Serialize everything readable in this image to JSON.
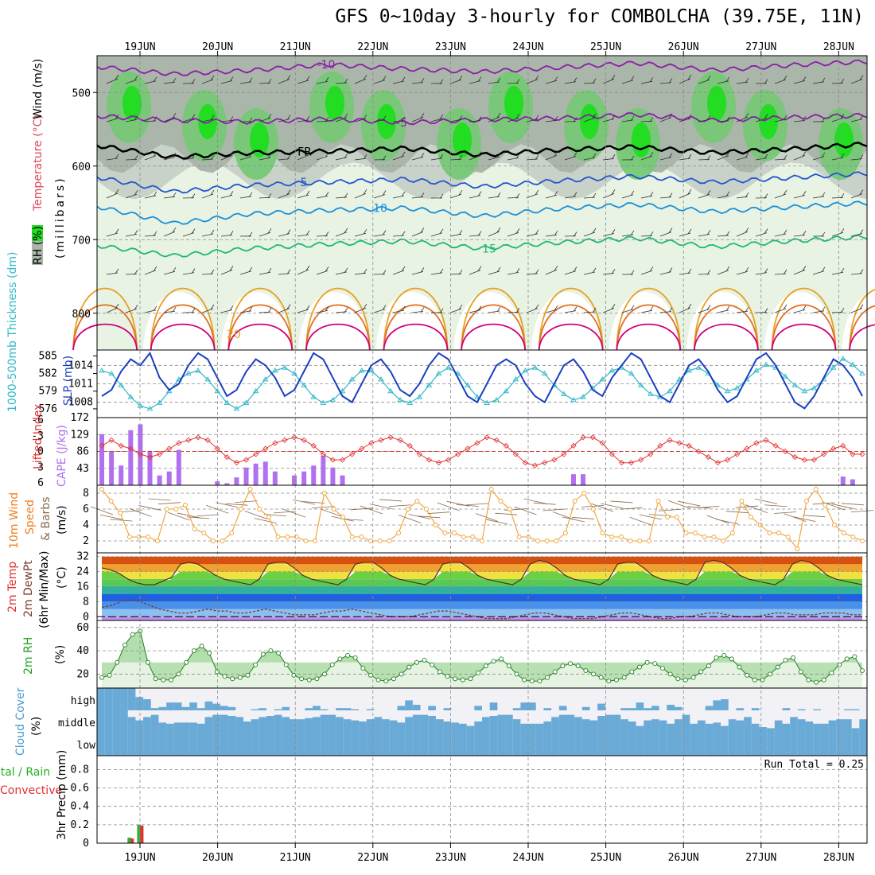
{
  "chart": {
    "title": "GFS 0~10day 3-hourly for COMBOLCHA (39.75E, 11N)",
    "date_labels": [
      "19JUN",
      "20JUN",
      "21JUN",
      "22JUN",
      "23JUN",
      "24JUN",
      "25JUN",
      "26JUN",
      "27JUN",
      "28JUN"
    ],
    "run_total_text": "Run Total = 0.25"
  },
  "chart_data": [
    {
      "type": "heatmap",
      "name": "upper-air",
      "ylabel_parts": [
        "RH (%)",
        "Temperature (°C)",
        "Wind (m/s)"
      ],
      "ylabel_units": "(millibars)",
      "y_ticks": [
        500,
        600,
        700,
        800
      ],
      "ylim": [
        850,
        450
      ],
      "temperature_contours": [
        {
          "label": "-10",
          "p": [
            465,
            475,
            470,
            462,
            468,
            472,
            466,
            460,
            470,
            463,
            458
          ]
        },
        {
          "label": "-5",
          "p": [
            532,
            538,
            540,
            536,
            541,
            537,
            535,
            530,
            538,
            534,
            531
          ]
        },
        {
          "label": "FR",
          "p": [
            572,
            588,
            582,
            580,
            576,
            585,
            578,
            574,
            582,
            577,
            570
          ]
        },
        {
          "label": "5",
          "p": [
            615,
            635,
            626,
            622,
            618,
            628,
            620,
            614,
            622,
            616,
            610
          ]
        },
        {
          "label": "10",
          "p": [
            655,
            678,
            665,
            660,
            657,
            668,
            658,
            652,
            662,
            656,
            650
          ]
        },
        {
          "label": "15",
          "p": [
            708,
            722,
            712,
            706,
            702,
            712,
            704,
            698,
            710,
            702,
            696
          ]
        }
      ],
      "rh_legend_colors": [
        "#e8f3e4",
        "#c8d2c8",
        "#a9b6a9",
        "#77c877",
        "#22dd22"
      ]
    },
    {
      "type": "line",
      "name": "slp-thickness",
      "ylabel_left": "1000-500mb Thickness (dm)",
      "ylabel_right": "SLP (mb)",
      "thickness_ticks": [
        576,
        579,
        582,
        585
      ],
      "slp_ticks": [
        1008,
        1011,
        1014
      ],
      "slp_range": [
        1005.5,
        1016.5
      ],
      "slp_series": {
        "name": "SLP",
        "values": [
          1009,
          1010,
          1013,
          1015,
          1014,
          1016,
          1012,
          1010,
          1011,
          1014,
          1016,
          1015,
          1012,
          1009,
          1010,
          1013,
          1015,
          1014,
          1012,
          1009,
          1010,
          1013,
          1016,
          1015,
          1012,
          1009,
          1008,
          1011,
          1014,
          1015,
          1013,
          1010,
          1009,
          1011,
          1014,
          1016,
          1015,
          1012,
          1009,
          1008,
          1011,
          1014,
          1015,
          1014,
          1011,
          1009,
          1008,
          1011,
          1014,
          1015,
          1013,
          1010,
          1009,
          1012,
          1014,
          1016,
          1015,
          1012,
          1009,
          1008,
          1011,
          1014,
          1015,
          1013,
          1010,
          1008,
          1009,
          1012,
          1015,
          1016,
          1014,
          1011,
          1008,
          1007,
          1009,
          1012,
          1015,
          1014,
          1012,
          1009
        ]
      },
      "thickness_series": {
        "name": "Thickness",
        "values": [
          582.5,
          582,
          580,
          578,
          576.5,
          576,
          577,
          579,
          581,
          582,
          582.5,
          581,
          579,
          577,
          576,
          577,
          579,
          581,
          582.5,
          583,
          582,
          580,
          578,
          577,
          577.5,
          579,
          581,
          582.5,
          582.5,
          581,
          579,
          577.5,
          577,
          578,
          580,
          582,
          583,
          582,
          580,
          578,
          577,
          577.5,
          579,
          581,
          582.5,
          583,
          582,
          580,
          578.5,
          577.5,
          578,
          579.5,
          581,
          582.5,
          583,
          582,
          580,
          578.5,
          578,
          579,
          581,
          582.5,
          583,
          582,
          580,
          579,
          579.5,
          581,
          582.5,
          583.5,
          583,
          581.5,
          580,
          579,
          579.5,
          581,
          583,
          584.5,
          583.5,
          582
        ]
      }
    },
    {
      "type": "bar",
      "name": "cape-lifted-index",
      "ylabel_left": "Lifted Index",
      "ylabel_right": "CAPE (J/kg)",
      "li_ticks": [
        "-6",
        "-3",
        "0",
        "3",
        "6"
      ],
      "cape_ticks": [
        43,
        86,
        129,
        172
      ],
      "cape_values": [
        130,
        85,
        50,
        140,
        155,
        85,
        25,
        35,
        90,
        0,
        0,
        0,
        10,
        5,
        20,
        45,
        55,
        60,
        35,
        0,
        25,
        35,
        50,
        75,
        45,
        25,
        0,
        0,
        0,
        0,
        0,
        0,
        0,
        0,
        0,
        0,
        0,
        0,
        0,
        0,
        0,
        0,
        0,
        0,
        0,
        0,
        0,
        0,
        0,
        28,
        28,
        0,
        0,
        0,
        0,
        0,
        0,
        0,
        0,
        0,
        0,
        0,
        0,
        0,
        0,
        0,
        0,
        0,
        0,
        0,
        0,
        0,
        0,
        0,
        0,
        0,
        0,
        22,
        15,
        0
      ],
      "li_values": [
        -1,
        -2,
        -1,
        -0.5,
        0.5,
        1,
        0.5,
        -0.5,
        -1.5,
        -2,
        -2.5,
        -2,
        -0.5,
        1,
        2,
        1.5,
        0.5,
        -0.5,
        -1.5,
        -2,
        -2.5,
        -2,
        -1,
        0.5,
        1.5,
        1.5,
        0.5,
        -0.5,
        -1.5,
        -2,
        -2.5,
        -2,
        -1,
        0.5,
        1.5,
        2,
        1.5,
        0.5,
        -0.5,
        -1.5,
        -2.5,
        -2,
        -1,
        0.5,
        2,
        2.5,
        2,
        1.5,
        0.5,
        -1,
        -2.5,
        -2.5,
        -1.5,
        0.5,
        2,
        2,
        1.5,
        0.5,
        -1,
        -2,
        -1.5,
        -1,
        0,
        1,
        2,
        1.5,
        0.5,
        -0.5,
        -1.5,
        -2,
        -1,
        0,
        1,
        1.5,
        1.5,
        0.5,
        -0.5,
        -1,
        0.5,
        0.5
      ]
    },
    {
      "type": "line",
      "name": "10m-wind",
      "ylabel_parts": [
        "10m Wind",
        "Speed",
        "& Barbs"
      ],
      "ylabel_units": "(m/s)",
      "y_ticks": [
        2,
        4,
        6,
        8
      ],
      "ylim": [
        0.5,
        9
      ],
      "values": [
        8.5,
        7,
        5.5,
        2.5,
        2.5,
        2.5,
        2,
        6,
        6,
        6.5,
        3.5,
        3,
        2,
        2,
        3,
        6,
        8.5,
        6,
        5,
        2.5,
        2.5,
        2.5,
        2,
        2,
        8,
        6,
        5,
        2.5,
        2.5,
        2,
        2,
        2,
        3,
        6,
        7,
        6,
        4,
        3,
        3,
        2.5,
        2.5,
        2,
        8.5,
        7,
        6,
        2.5,
        2.5,
        2,
        2,
        2,
        3,
        7,
        8,
        6,
        3,
        2.5,
        2.5,
        2,
        2,
        2,
        7,
        5,
        5,
        3,
        3,
        2.5,
        2.5,
        2,
        3,
        7,
        5,
        4,
        3,
        3,
        2.5,
        1,
        7,
        8.5,
        6.5,
        4,
        3,
        2.5,
        2
      ]
    },
    {
      "type": "area",
      "name": "2m-temp",
      "ylabel_parts": [
        "2m Temp",
        "2m DewPt",
        "(6hr Min/Max)"
      ],
      "ylabel_units": "(°C)",
      "y_ticks": [
        0,
        8,
        16,
        24,
        32
      ],
      "ylim": [
        -2,
        34
      ],
      "temp_values": [
        26,
        25,
        23,
        20,
        18,
        17,
        17,
        19,
        21,
        28,
        29,
        28,
        25,
        22,
        20,
        19,
        18,
        17,
        20,
        28,
        29,
        29,
        26,
        22,
        20,
        19,
        18,
        17,
        20,
        28,
        29,
        29,
        26,
        22,
        20,
        19,
        18,
        17,
        20,
        28,
        29,
        29,
        26,
        22,
        20,
        19,
        18,
        17,
        20,
        28,
        30,
        29,
        26,
        22,
        20,
        19,
        18,
        17,
        20,
        28,
        29,
        29,
        26,
        22,
        20,
        19,
        18,
        17,
        20,
        29,
        30,
        29,
        26,
        22,
        20,
        19,
        18,
        17,
        20,
        28,
        30,
        29,
        26,
        22,
        20,
        19,
        18,
        17
      ],
      "dewpoint_values": [
        5,
        6,
        8,
        9,
        8,
        6,
        4,
        3,
        2,
        2,
        3,
        4,
        3,
        3,
        2,
        2,
        3,
        4,
        3,
        2,
        1,
        1,
        1,
        2,
        3,
        3,
        4,
        3,
        2,
        1,
        0,
        0,
        0,
        1,
        2,
        3,
        3,
        2,
        1,
        0,
        -1,
        -1,
        -1,
        0,
        1,
        2,
        2,
        1,
        0,
        -1,
        -1,
        -1,
        0,
        1,
        2,
        2,
        1,
        0,
        -1,
        -1,
        0,
        0,
        1,
        2,
        2,
        1,
        0,
        0,
        0,
        1,
        2,
        2,
        1,
        1,
        1,
        2,
        2,
        2,
        1,
        1
      ]
    },
    {
      "type": "area",
      "name": "2m-rh",
      "ylabel": "2m RH",
      "ylabel_units": "(%)",
      "y_ticks": [
        20,
        40,
        60
      ],
      "ylim": [
        8,
        66
      ],
      "values": [
        17,
        19,
        30,
        45,
        54,
        57,
        30,
        16,
        15,
        15,
        20,
        30,
        40,
        44,
        38,
        22,
        18,
        16,
        17,
        19,
        28,
        37,
        40,
        38,
        28,
        19,
        16,
        15,
        16,
        20,
        28,
        33,
        36,
        34,
        25,
        19,
        15,
        14,
        16,
        20,
        26,
        30,
        32,
        28,
        22,
        18,
        16,
        15,
        16,
        21,
        27,
        31,
        33,
        27,
        20,
        15,
        14,
        14,
        17,
        22,
        27,
        29,
        27,
        23,
        20,
        17,
        14,
        15,
        17,
        22,
        26,
        30,
        29,
        25,
        20,
        16,
        15,
        17,
        22,
        27,
        34,
        36,
        33,
        26,
        19,
        15,
        15,
        20,
        26,
        32,
        34,
        22,
        15,
        13,
        15,
        21,
        28,
        33,
        35,
        23
      ]
    },
    {
      "type": "bar",
      "name": "cloud-cover",
      "ylabel_parts": [
        "Cloud Cover",
        "(%)"
      ],
      "layers": [
        "high",
        "middle",
        "low"
      ],
      "high_values": [
        100,
        100,
        100,
        100,
        100,
        60,
        50,
        10,
        15,
        35,
        35,
        15,
        35,
        10,
        40,
        30,
        20,
        15,
        0,
        0,
        5,
        10,
        0,
        5,
        15,
        0,
        0,
        10,
        20,
        5,
        0,
        10,
        10,
        5,
        0,
        5,
        0,
        0,
        0,
        20,
        45,
        25,
        0,
        20,
        0,
        10,
        0,
        0,
        0,
        20,
        0,
        35,
        0,
        0,
        10,
        35,
        35,
        0,
        10,
        0,
        20,
        0,
        0,
        15,
        0,
        30,
        0,
        0,
        10,
        10,
        35,
        10,
        20,
        0,
        25,
        15,
        0,
        0,
        0,
        20,
        45,
        50,
        0,
        10,
        0,
        10,
        0,
        0,
        0,
        10,
        0,
        5,
        0,
        5,
        0,
        0,
        0,
        5,
        5,
        0
      ],
      "middle_values": [
        100,
        100,
        100,
        100,
        70,
        55,
        70,
        80,
        45,
        40,
        45,
        45,
        45,
        40,
        70,
        80,
        80,
        75,
        70,
        50,
        60,
        70,
        75,
        80,
        70,
        60,
        60,
        65,
        70,
        80,
        80,
        70,
        60,
        55,
        50,
        60,
        70,
        60,
        55,
        45,
        70,
        80,
        80,
        75,
        60,
        50,
        45,
        40,
        30,
        50,
        70,
        75,
        80,
        80,
        60,
        40,
        40,
        40,
        50,
        70,
        80,
        80,
        70,
        60,
        55,
        75,
        80,
        80,
        60,
        50,
        30,
        55,
        60,
        55,
        40,
        60,
        80,
        40,
        55,
        40,
        45,
        30,
        60,
        55,
        70,
        40,
        25,
        20,
        55,
        40,
        70,
        60,
        50,
        40,
        40,
        55,
        60,
        60,
        20,
        60
      ],
      "low_values": [
        100,
        100,
        100,
        100,
        100,
        100,
        100,
        100,
        100,
        100,
        100,
        100,
        100,
        100,
        100,
        100,
        100,
        100,
        100,
        100,
        100,
        100,
        100,
        100,
        100,
        100,
        100,
        100,
        100,
        100,
        100,
        100,
        100,
        100,
        100,
        100,
        100,
        100,
        100,
        100,
        100,
        100,
        100,
        100,
        100,
        100,
        100,
        100,
        100,
        100,
        100,
        100,
        100,
        100,
        100,
        100,
        100,
        100,
        100,
        100,
        100,
        100,
        100,
        100,
        100,
        100,
        100,
        100,
        100,
        100,
        100,
        100,
        100,
        100,
        100,
        100,
        100,
        100,
        100,
        100,
        100,
        100,
        100,
        100,
        100,
        100,
        100,
        100,
        100,
        100,
        100,
        100,
        100,
        100,
        100,
        100,
        100,
        100,
        100,
        100
      ]
    },
    {
      "type": "bar",
      "name": "precip",
      "ylabel_left_lines": [
        "Total / Rain",
        "Convective"
      ],
      "ylabel_units": "3hr Precip (mm)",
      "y_ticks": [
        0,
        0.2,
        0.4,
        0.6,
        0.8
      ],
      "ylim": [
        0,
        0.95
      ],
      "series": [
        {
          "name": "Total / Rain",
          "values": [
            0,
            0,
            0,
            0.06,
            0.2,
            0,
            0,
            0,
            0,
            0,
            0,
            0,
            0,
            0,
            0,
            0,
            0,
            0,
            0,
            0,
            0,
            0,
            0,
            0,
            0,
            0,
            0,
            0,
            0,
            0,
            0,
            0,
            0,
            0,
            0,
            0,
            0,
            0,
            0,
            0,
            0,
            0,
            0,
            0,
            0,
            0,
            0,
            0,
            0,
            0,
            0,
            0,
            0,
            0,
            0,
            0,
            0,
            0,
            0,
            0,
            0,
            0,
            0,
            0,
            0,
            0,
            0,
            0,
            0,
            0,
            0,
            0,
            0,
            0,
            0,
            0,
            0,
            0,
            0,
            0
          ]
        },
        {
          "name": "Convective",
          "values": [
            0,
            0,
            0,
            0.05,
            0.19,
            0,
            0,
            0,
            0,
            0,
            0,
            0,
            0,
            0,
            0,
            0,
            0,
            0,
            0,
            0,
            0,
            0,
            0,
            0,
            0,
            0,
            0,
            0,
            0,
            0,
            0,
            0,
            0,
            0,
            0,
            0,
            0,
            0,
            0,
            0,
            0,
            0,
            0,
            0,
            0,
            0,
            0,
            0,
            0,
            0,
            0,
            0,
            0,
            0,
            0,
            0,
            0,
            0,
            0,
            0,
            0,
            0,
            0,
            0,
            0,
            0,
            0,
            0,
            0,
            0,
            0,
            0,
            0,
            0,
            0,
            0,
            0,
            0,
            0,
            0
          ]
        }
      ]
    }
  ]
}
